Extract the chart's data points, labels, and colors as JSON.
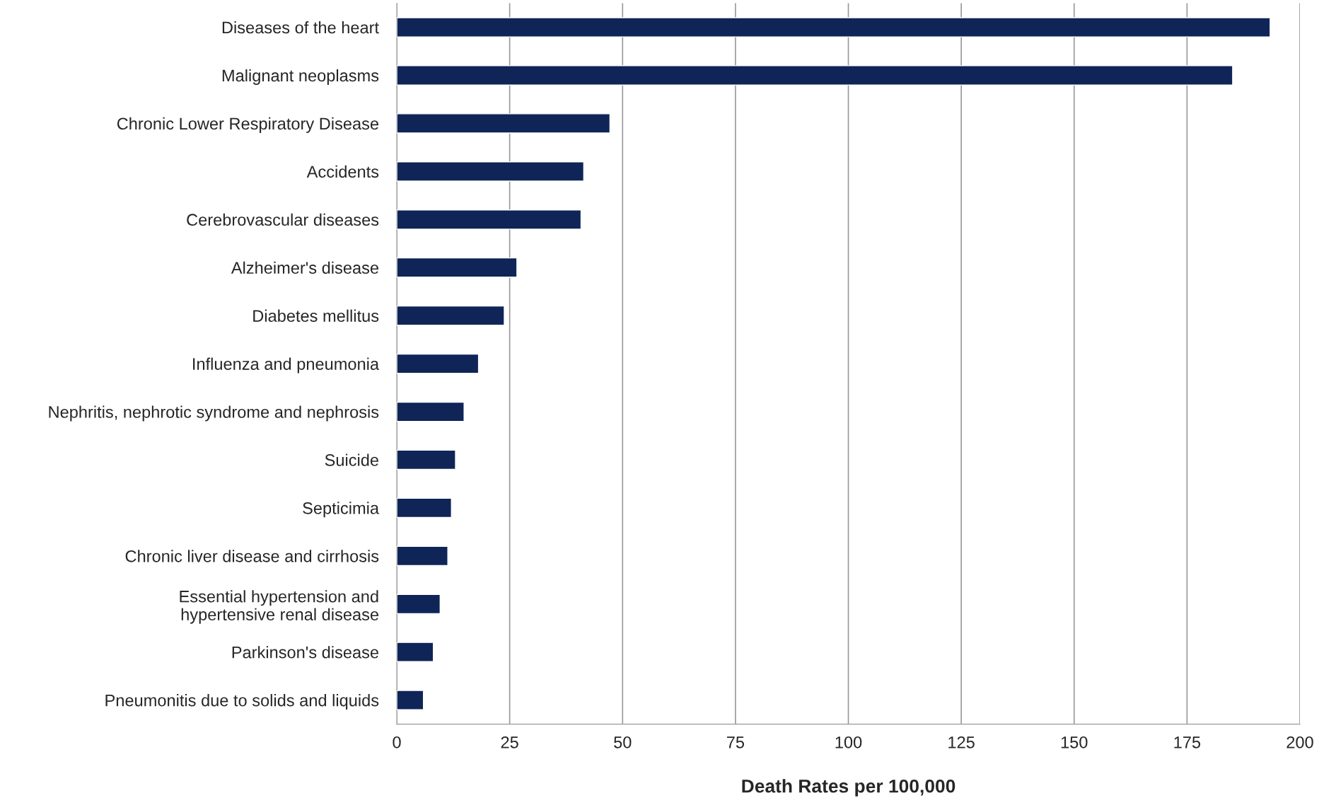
{
  "chart_data": {
    "type": "bar",
    "orientation": "horizontal",
    "xlabel": "Death Rates per 100,000",
    "categories": [
      "Diseases of the heart",
      "Malignant neoplasms",
      "Chronic Lower Respiratory Disease",
      "Accidents",
      "Cerebrovascular diseases",
      "Alzheimer's disease",
      "Diabetes mellitus",
      "Influenza and pneumonia",
      "Nephritis, nephrotic syndrome and nephrosis",
      "Suicide",
      "Septicimia",
      "Chronic liver disease and cirrhosis",
      "Essential hypertension and\nhypertensive renal disease",
      "Parkinson's disease",
      "Pneumonitis due to solids and liquids"
    ],
    "values": [
      193.4,
      185.1,
      47.2,
      41.4,
      40.8,
      26.6,
      23.8,
      18.1,
      14.9,
      13.0,
      12.1,
      11.3,
      9.6,
      8.1,
      5.9
    ],
    "color": "#0f2557",
    "xlim": [
      0,
      200
    ],
    "xticks": [
      0,
      25,
      50,
      75,
      100,
      125,
      150,
      175,
      200
    ],
    "grid": "x",
    "legend": false
  }
}
